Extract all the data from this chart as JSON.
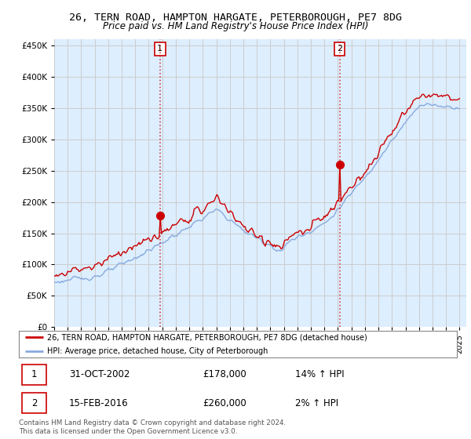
{
  "title": "26, TERN ROAD, HAMPTON HARGATE, PETERBOROUGH, PE7 8DG",
  "subtitle": "Price paid vs. HM Land Registry's House Price Index (HPI)",
  "y_ticks": [
    0,
    50000,
    100000,
    150000,
    200000,
    250000,
    300000,
    350000,
    400000,
    450000
  ],
  "y_tick_labels": [
    "£0",
    "£50K",
    "£100K",
    "£150K",
    "£200K",
    "£250K",
    "£300K",
    "£350K",
    "£400K",
    "£450K"
  ],
  "ylim": [
    0,
    460000
  ],
  "red_line_color": "#cc0000",
  "blue_line_color": "#88aadd",
  "grid_color": "#cccccc",
  "plot_bg": "#ddeeff",
  "sale1_year": 2002.83,
  "sale1_price": 178000,
  "sale1_label": "1",
  "sale1_date": "31-OCT-2002",
  "sale1_hpi": "14%",
  "sale2_year": 2016.12,
  "sale2_price": 260000,
  "sale2_label": "2",
  "sale2_date": "15-FEB-2016",
  "sale2_hpi": "2%",
  "legend_line1": "26, TERN ROAD, HAMPTON HARGATE, PETERBOROUGH, PE7 8DG (detached house)",
  "legend_line2": "HPI: Average price, detached house, City of Peterborough",
  "footer": "Contains HM Land Registry data © Crown copyright and database right 2024.\nThis data is licensed under the Open Government Licence v3.0."
}
